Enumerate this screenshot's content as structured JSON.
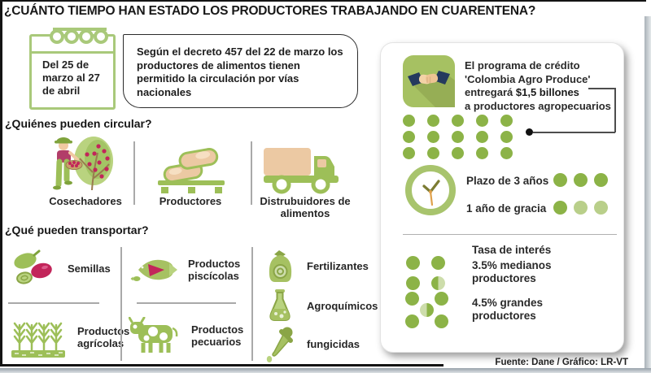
{
  "title": "¿CUÁNTO TIEMPO HAN ESTADO LOS PRODUCTORES TRABAJANDO EN CUARENTENA?",
  "calendar": {
    "date_range": "Del 25 de marzo al 27 de abril"
  },
  "decree": {
    "text": "Según el decreto 457 del 22 de marzo los productores de alimentos tienen permitido la circulación por vías nacionales"
  },
  "circulate": {
    "heading": "¿Quiénes pueden circular?",
    "items": [
      {
        "label": "Cosechadores",
        "icon": "harvester-icon"
      },
      {
        "label": "Productores",
        "icon": "sacks-pallet-icon"
      },
      {
        "label": "Distrubuidores de alimentos",
        "icon": "delivery-truck-icon"
      }
    ]
  },
  "transport": {
    "heading": "¿Qué pueden transportar?",
    "items": [
      {
        "label": "Semillas",
        "icon": "seeds-icon"
      },
      {
        "label": "Productos agrícolas",
        "icon": "crops-icon"
      },
      {
        "label": "Productos piscícolas",
        "icon": "fish-icon"
      },
      {
        "label": "Productos pecuarios",
        "icon": "cow-icon"
      },
      {
        "label": "Fertilizantes",
        "icon": "fertilizer-bag-icon"
      },
      {
        "label": "Agroquímicos",
        "icon": "flask-icon"
      },
      {
        "label": "fungicidas",
        "icon": "dropper-icon"
      }
    ]
  },
  "credit": {
    "line1": "El programa de crédito",
    "line2": "'Colombia Agro Produce'",
    "line3_normal": "entregará ",
    "line3_bold": "$1,5 billones",
    "line4": "a productores agropecuarios",
    "loan_dots": [
      "#8cb347",
      "#8cb347",
      "#8cb347",
      "#8cb347",
      "#8cb347",
      "#8cb347",
      "#8cb347",
      "#8cb347",
      "#8cb347",
      "#8cb347",
      "#8cb347",
      "#8cb347",
      "#8cb347",
      "#8cb347",
      "#8cb347"
    ],
    "term_label": "Plazo de 3 años",
    "term_dots": [
      "#8cb347",
      "#8cb347",
      "#8cb347"
    ],
    "grace_label": "1 año de gracia",
    "grace_dots": [
      "#8cb347",
      "#b9cf8a",
      "#b9cf8a"
    ],
    "interest_heading": "Tasa de interés",
    "medium_label": "3.5% medianos productores",
    "medium_dots": [
      "#8cb347",
      "#8cb347",
      "#8cb347",
      "linear-gradient(90deg,#8cb347 50%,#cdddab 50%)"
    ],
    "large_label": "4.5% grandes productores",
    "large_dots": [
      "#8cb347",
      "#8cb347",
      "linear-gradient(90deg,#cdddab 50%,#8cb347 50%)",
      "#8cb347",
      "#8cb347"
    ]
  },
  "footer": {
    "source": "Fuente: Dane / Gráfico: LR-VT"
  },
  "colors": {
    "green": "#8cb347",
    "icon_green": "#9dbf58",
    "light_green": "#b9cf8a",
    "pale_green": "#cdddab",
    "peach": "#ecc9a3",
    "crimson": "#c2255a",
    "navy": "#243a5e",
    "orange": "#dfa04b"
  }
}
